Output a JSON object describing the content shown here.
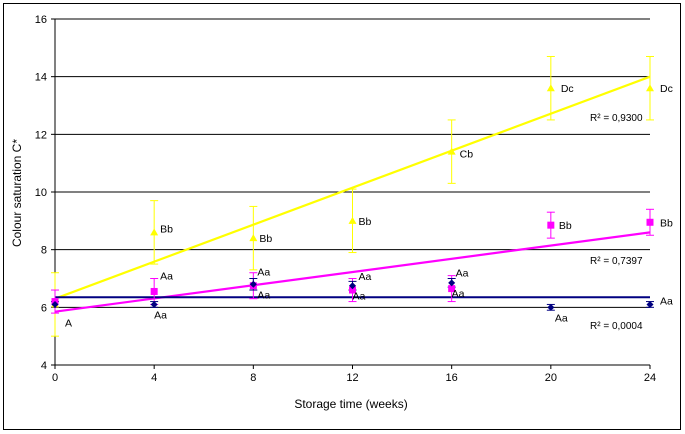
{
  "chart_data": {
    "type": "scatter",
    "title": "",
    "xlabel": "Storage time (weeks)",
    "ylabel": "Colour saturation C*",
    "xlim": [
      0,
      24
    ],
    "ylim": [
      4,
      16
    ],
    "xticks": [
      0,
      4,
      8,
      12,
      16,
      20,
      24
    ],
    "yticks": [
      4,
      6,
      8,
      10,
      12,
      14,
      16
    ],
    "grid": "horizontal",
    "legend": "none",
    "series": [
      {
        "marker": "triangle",
        "color": "#ffff00",
        "x": [
          0,
          4,
          8,
          12,
          16,
          20,
          24
        ],
        "y": [
          6.1,
          8.6,
          8.4,
          9.0,
          11.4,
          13.6,
          13.6
        ],
        "err": [
          1.1,
          1.1,
          1.1,
          1.1,
          1.1,
          1.1,
          1.1
        ],
        "labels": [
          "A",
          "Bb",
          "Bb",
          "Bb",
          "Cb",
          "Dc",
          "Dc"
        ],
        "trend": {
          "start": [
            0,
            6.3
          ],
          "end": [
            24,
            14.0
          ]
        },
        "r2": "R² = 0,9300"
      },
      {
        "marker": "square",
        "color": "#ff00ff",
        "x": [
          0,
          4,
          8,
          12,
          16,
          20,
          24
        ],
        "y": [
          6.2,
          6.55,
          6.75,
          6.6,
          6.65,
          8.85,
          8.95
        ],
        "err": [
          0.4,
          0.45,
          0.45,
          0.4,
          0.45,
          0.45,
          0.45
        ],
        "labels": [
          "",
          "Aa",
          "Aa",
          "Aa",
          "Aa",
          "Bb",
          "Bb"
        ],
        "trend": {
          "start": [
            0,
            5.85
          ],
          "end": [
            24,
            8.6
          ]
        },
        "r2": "R² = 0,7397"
      },
      {
        "marker": "diamond",
        "color": "#000080",
        "x": [
          0,
          4,
          8,
          12,
          16,
          20,
          24
        ],
        "y": [
          6.1,
          6.1,
          6.8,
          6.75,
          6.85,
          6.0,
          6.1
        ],
        "err": [
          0.1,
          0.1,
          0.2,
          0.15,
          0.15,
          0.1,
          0.1
        ],
        "labels": [
          "",
          "Aa",
          "Aa",
          "Aa",
          "Aa",
          "Aa",
          "Aa"
        ],
        "trend": {
          "start": [
            0,
            6.35
          ],
          "end": [
            24,
            6.35
          ]
        },
        "r2": "R² = 0,0004"
      }
    ]
  }
}
